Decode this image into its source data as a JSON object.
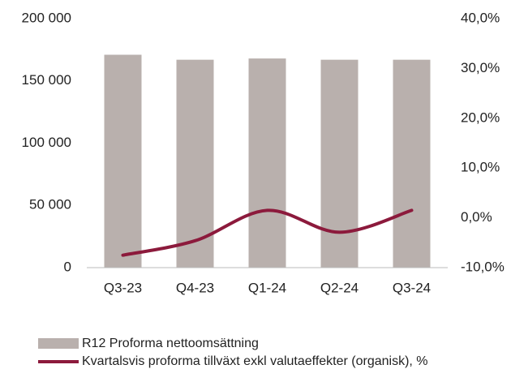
{
  "chart_data": {
    "type": "bar_line",
    "categories": [
      "Q3-23",
      "Q4-23",
      "Q1-24",
      "Q2-24",
      "Q3-24"
    ],
    "series": [
      {
        "name": "R12 Proforma nettoomsättning",
        "type": "bar",
        "color": "#b9b0ad",
        "values": [
          171000,
          167000,
          168000,
          167000,
          167000
        ]
      },
      {
        "name": "Kvartalsvis proforma tillväxt exkl valutaeffekter (organisk), %",
        "type": "line",
        "axis": "y2",
        "color": "#8c1a3c",
        "values": [
          -7.5,
          -4.6,
          1.5,
          -2.9,
          1.5
        ]
      }
    ],
    "ylim": [
      0,
      200000
    ],
    "yticks": [
      0,
      {
        "value": 50000,
        "label": "50 000"
      },
      {
        "value": 100000,
        "label": "100 000"
      },
      {
        "value": 150000,
        "label": "150 000"
      },
      {
        "value": 200000,
        "label": "200 000"
      }
    ],
    "y2lim": [
      -10,
      40
    ],
    "y2ticks": [
      {
        "value": -10,
        "label": "-10,0%"
      },
      {
        "value": 0,
        "label": "0,0%"
      },
      {
        "value": 10,
        "label": "10,0%"
      },
      {
        "value": 20,
        "label": "20,0%"
      },
      {
        "value": 30,
        "label": "30,0%"
      },
      {
        "value": 40,
        "label": "40,0%"
      }
    ],
    "grid": false,
    "legend": "bottom"
  }
}
